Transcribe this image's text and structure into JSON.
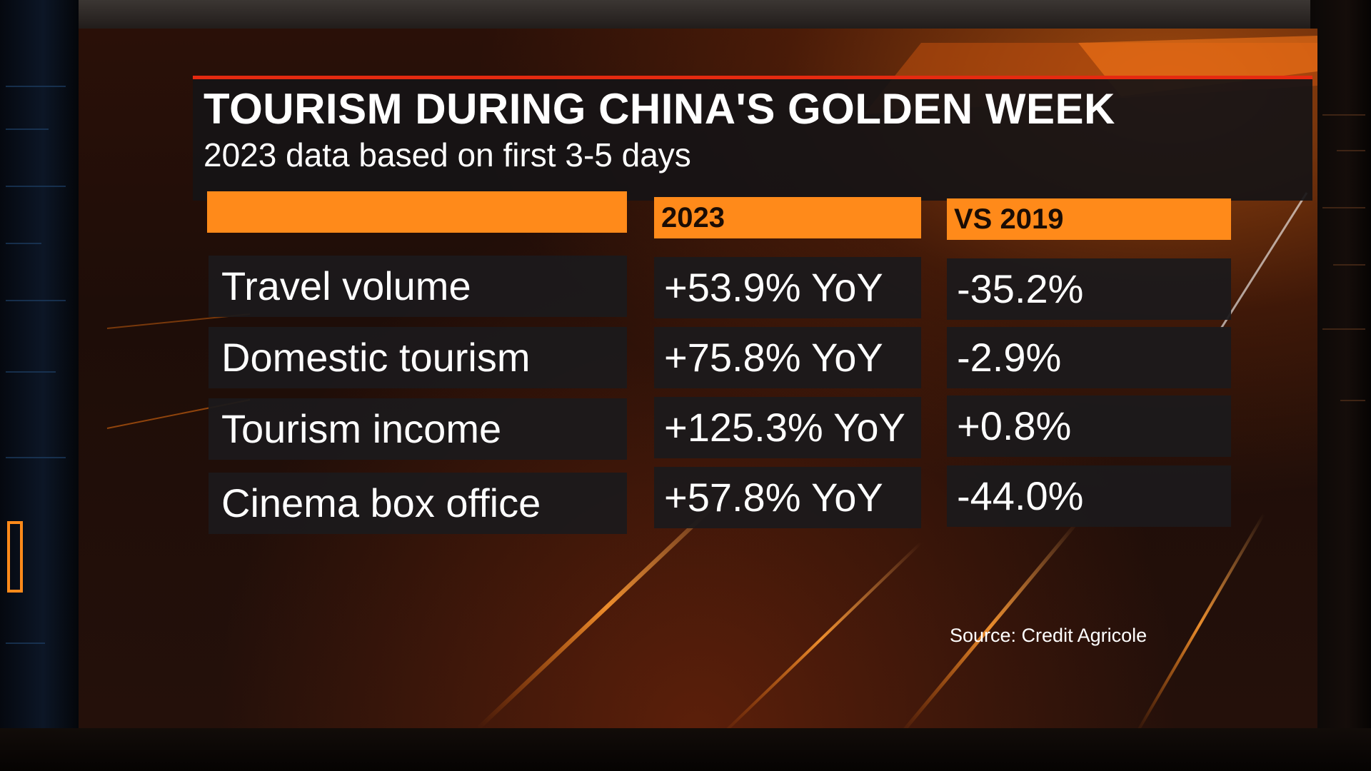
{
  "graphic": {
    "title": "TOURISM DURING CHINA'S GOLDEN WEEK",
    "subtitle": "2023 data based on first 3-5 days",
    "source": "Source: Credit Agricole"
  },
  "table": {
    "headers": [
      "",
      "2023",
      "VS 2019"
    ],
    "rows": [
      {
        "label": "Travel volume",
        "yoy_2023": "+53.9% YoY",
        "vs_2019": "-35.2%"
      },
      {
        "label": "Domestic tourism",
        "yoy_2023": "+75.8% YoY",
        "vs_2019": "-2.9%"
      },
      {
        "label": "Tourism income",
        "yoy_2023": "+125.3% YoY",
        "vs_2019": "+0.8%"
      },
      {
        "label": "Cinema box office",
        "yoy_2023": "+57.8% YoY",
        "vs_2019": "-44.0%"
      }
    ]
  },
  "colors": {
    "accent_orange": "#ff8a1a",
    "title_rule_red": "#e52a10",
    "cell_background": "#1c1a1c",
    "text": "#ffffff"
  }
}
